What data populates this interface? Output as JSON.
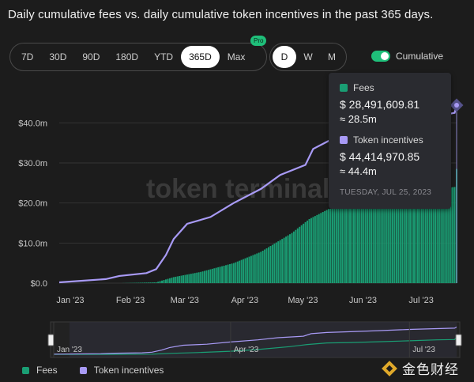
{
  "title": "Daily cumulative fees vs. daily cumulative token incentives in the past 365 days.",
  "range_buttons": [
    "7D",
    "30D",
    "90D",
    "180D",
    "YTD",
    "365D",
    "Max"
  ],
  "range_active": "365D",
  "pro_badge": "Pro",
  "interval_buttons": [
    "D",
    "W",
    "M"
  ],
  "interval_active": "D",
  "cumulative_label": "Cumulative",
  "cumulative_on": true,
  "watermark": "token terminal",
  "colors": {
    "fees": "#1a9e74",
    "incentives": "#a89af5",
    "accent": "#1fbf7a"
  },
  "tooltip": {
    "fees_label": "Fees",
    "fees_value": "$ 28,491,609.81",
    "fees_approx": "≈ 28.5m",
    "incentives_label": "Token incentives",
    "incentives_value": "$ 44,414,970.85",
    "incentives_approx": "≈ 44.4m",
    "date": "TUESDAY, JUL 25, 2023"
  },
  "legend": {
    "fees": "Fees",
    "incentives": "Token incentives"
  },
  "brand": "金色财经",
  "chart_data": {
    "type": "bar",
    "title": "Daily cumulative fees vs. daily cumulative token incentives in the past 365 days.",
    "y_ticks": [
      "$0.0",
      "$10.0m",
      "$20.0m",
      "$30.0m",
      "$40.0m"
    ],
    "x_ticks": [
      "Jan '23",
      "Feb '23",
      "Mar '23",
      "Apr '23",
      "May '23",
      "Jun '23",
      "Jul '23"
    ],
    "navigator_ticks": [
      "Jan '23",
      "Apr '23",
      "Jul '23"
    ],
    "ylim": [
      0,
      45
    ],
    "x_range": [
      "2023-01-01",
      "2023-07-25"
    ],
    "series": [
      {
        "name": "Fees",
        "render": "bar",
        "unit": "m USD",
        "points": [
          [
            "2023-01-01",
            0.0
          ],
          [
            "2023-02-01",
            0.0
          ],
          [
            "2023-02-20",
            0.2
          ],
          [
            "2023-03-01",
            1.5
          ],
          [
            "2023-03-15",
            2.8
          ],
          [
            "2023-04-01",
            5.0
          ],
          [
            "2023-04-15",
            7.8
          ],
          [
            "2023-05-01",
            12.5
          ],
          [
            "2023-05-10",
            16.0
          ],
          [
            "2023-05-20",
            18.5
          ],
          [
            "2023-06-01",
            19.2
          ],
          [
            "2023-06-15",
            20.5
          ],
          [
            "2023-07-01",
            22.0
          ],
          [
            "2023-07-15",
            23.5
          ],
          [
            "2023-07-24",
            24.0
          ],
          [
            "2023-07-25",
            28.5
          ]
        ]
      },
      {
        "name": "Token incentives",
        "render": "line",
        "unit": "m USD",
        "points": [
          [
            "2023-01-01",
            0.2
          ],
          [
            "2023-01-25",
            1.0
          ],
          [
            "2023-02-01",
            1.8
          ],
          [
            "2023-02-15",
            2.5
          ],
          [
            "2023-02-20",
            3.5
          ],
          [
            "2023-02-25",
            7.0
          ],
          [
            "2023-03-01",
            11.0
          ],
          [
            "2023-03-08",
            14.8
          ],
          [
            "2023-03-20",
            16.5
          ],
          [
            "2023-04-01",
            20.0
          ],
          [
            "2023-04-15",
            23.5
          ],
          [
            "2023-04-25",
            27.0
          ],
          [
            "2023-05-08",
            29.5
          ],
          [
            "2023-05-12",
            33.5
          ],
          [
            "2023-05-20",
            35.5
          ],
          [
            "2023-06-01",
            36.8
          ],
          [
            "2023-06-15",
            38.5
          ],
          [
            "2023-07-01",
            40.5
          ],
          [
            "2023-07-24",
            42.5
          ],
          [
            "2023-07-25",
            44.4
          ]
        ]
      }
    ],
    "grid": true,
    "legend_position": "bottom-left"
  }
}
